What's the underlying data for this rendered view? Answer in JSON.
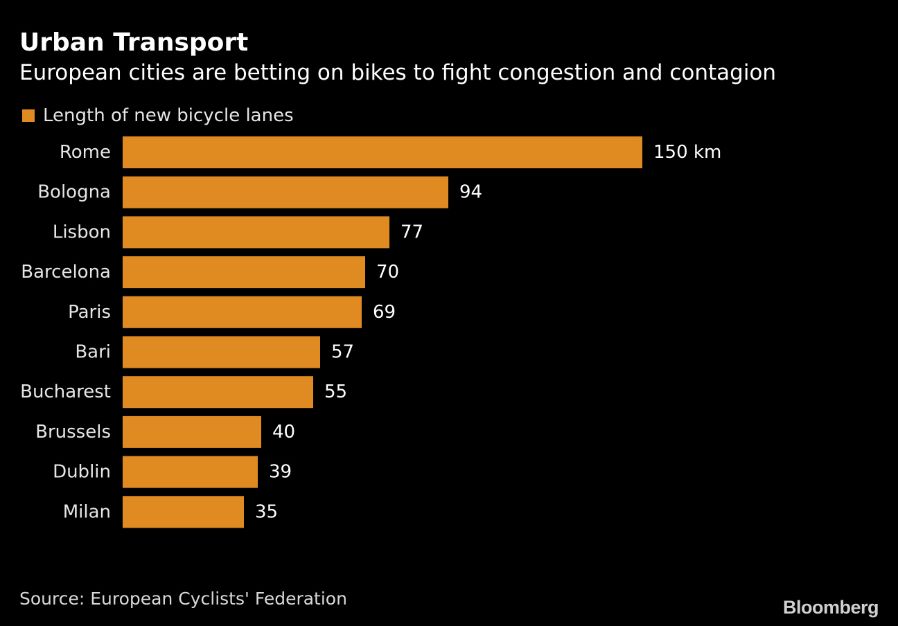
{
  "header": {
    "title": "Urban Transport",
    "subtitle": "European cities are betting on bikes to fight congestion and contagion"
  },
  "footer": {
    "source": "Source: European Cyclists' Federation",
    "logo": "Bloomberg"
  },
  "colors": {
    "background": "#000000",
    "bar": "#e08b22",
    "text": "#ffffff"
  },
  "chart_data": {
    "type": "bar",
    "orientation": "horizontal",
    "legend": "Length of new bicycle lanes",
    "legend_position": "top-left",
    "unit_label": "km",
    "grid": false,
    "categories": [
      "Rome",
      "Bologna",
      "Lisbon",
      "Barcelona",
      "Paris",
      "Bari",
      "Bucharest",
      "Brussels",
      "Dublin",
      "Milan"
    ],
    "series": [
      {
        "name": "Length of new bicycle lanes",
        "values": [
          150,
          94,
          77,
          70,
          69,
          57,
          55,
          40,
          39,
          35
        ]
      }
    ],
    "data_labels": [
      "150 km",
      "94",
      "77",
      "70",
      "69",
      "57",
      "55",
      "40",
      "39",
      "35"
    ],
    "xlim": [
      0,
      150
    ]
  }
}
